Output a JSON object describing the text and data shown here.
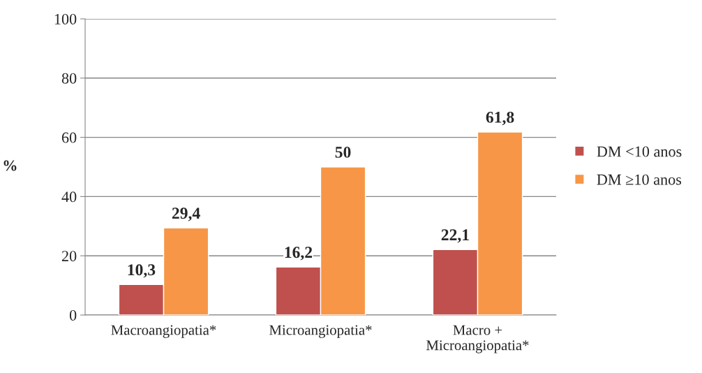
{
  "chart_data": {
    "type": "bar",
    "ylabel": "%",
    "categories": [
      "Macroangiopatia*",
      "Microangiopatia*",
      "Macro +\nMicroangiopatia*"
    ],
    "series": [
      {
        "name": "DM <10 anos",
        "color": "#c0504d",
        "values": [
          10.3,
          16.2,
          22.1
        ],
        "value_labels": [
          "10,3",
          "16,2",
          "22,1"
        ]
      },
      {
        "name": "DM ≥10 anos",
        "color": "#f79646",
        "values": [
          29.4,
          50,
          61.8
        ],
        "value_labels": [
          "29,4",
          "50",
          "61,8"
        ]
      }
    ],
    "ylim": [
      0,
      100
    ],
    "yticks": [
      0,
      20,
      40,
      60,
      80,
      100
    ],
    "grid": "y",
    "legend": "right"
  }
}
